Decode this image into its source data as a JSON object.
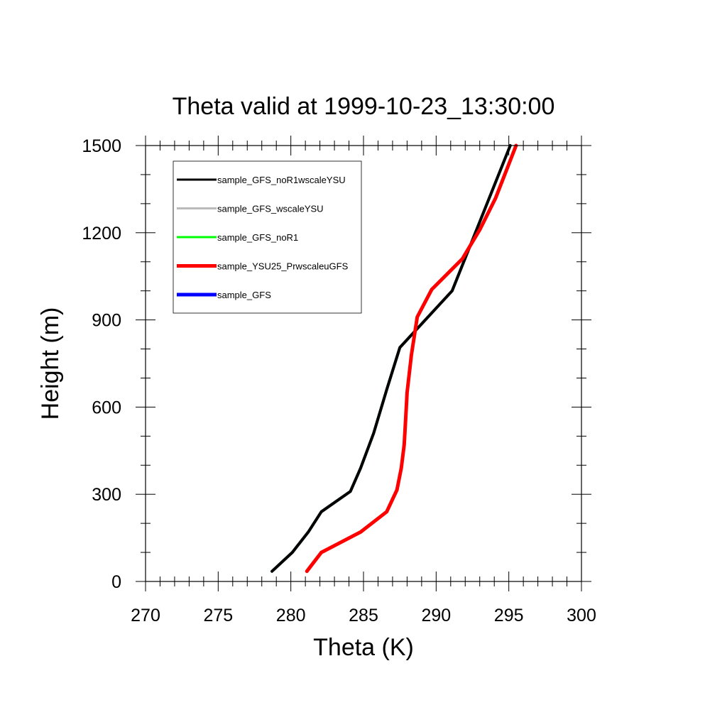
{
  "chart_data": {
    "type": "line",
    "title": "Theta valid at 1999-10-23_13:30:00",
    "xlabel": "Theta (K)",
    "ylabel": "Height (m)",
    "xlim": [
      270,
      300
    ],
    "ylim": [
      0,
      1500
    ],
    "x_ticks": [
      270,
      275,
      280,
      285,
      290,
      295,
      300
    ],
    "y_ticks": [
      0,
      300,
      600,
      900,
      1200,
      1500
    ],
    "x_tick_labels": [
      "270",
      "275",
      "280",
      "285",
      "290",
      "295",
      "300"
    ],
    "y_tick_labels": [
      "0",
      "300",
      "600",
      "900",
      "1200",
      "1500"
    ],
    "grid": false,
    "legend_position": "top-left",
    "series": [
      {
        "name": "sample_GFS_noR1wscaleYSU",
        "color": "#000000",
        "x": [
          278.7,
          280.1,
          281.2,
          282.1,
          284.1,
          284.8,
          285.7,
          286.6,
          287.5,
          291.1,
          292.3,
          295.1
        ],
        "y": [
          35,
          100,
          170,
          240,
          310,
          390,
          510,
          660,
          805,
          1000,
          1150,
          1500
        ]
      },
      {
        "name": "sample_GFS_wscaleYSU",
        "color": "#bbbbbb",
        "x": [
          278.7,
          280.1,
          281.2,
          282.1,
          284.1,
          284.8,
          285.7,
          286.6,
          287.5,
          291.1,
          292.3,
          295.1
        ],
        "y": [
          35,
          100,
          170,
          240,
          310,
          390,
          510,
          660,
          805,
          1000,
          1150,
          1500
        ]
      },
      {
        "name": "sample_GFS_noR1",
        "color": "#00ff00",
        "x": [
          278.7,
          280.1,
          281.2,
          282.1,
          284.1,
          284.8,
          285.7,
          286.6,
          287.5,
          291.1,
          292.3,
          295.1
        ],
        "y": [
          35,
          100,
          170,
          240,
          310,
          390,
          510,
          660,
          805,
          1000,
          1150,
          1500
        ]
      },
      {
        "name": "sample_YSU25_PrwscaleuGFS",
        "color": "#ff0000",
        "x": [
          281.1,
          282.1,
          284.8,
          286.6,
          287.3,
          287.6,
          287.8,
          287.9,
          288.0,
          288.3,
          288.7,
          289.7,
          291.8,
          293.0,
          294.1,
          295.5
        ],
        "y": [
          35,
          100,
          170,
          240,
          315,
          390,
          470,
          560,
          650,
          780,
          910,
          1005,
          1110,
          1210,
          1320,
          1500
        ]
      },
      {
        "name": "sample_GFS",
        "color": "#0000ff",
        "x": [
          278.7,
          280.1,
          281.2,
          282.1,
          284.1,
          284.8,
          285.7,
          286.6,
          287.5,
          291.1,
          292.3,
          295.1
        ],
        "y": [
          35,
          100,
          170,
          240,
          310,
          390,
          510,
          660,
          805,
          1000,
          1150,
          1500
        ]
      }
    ],
    "draw_order": [
      4,
      2,
      1,
      0,
      3
    ]
  }
}
